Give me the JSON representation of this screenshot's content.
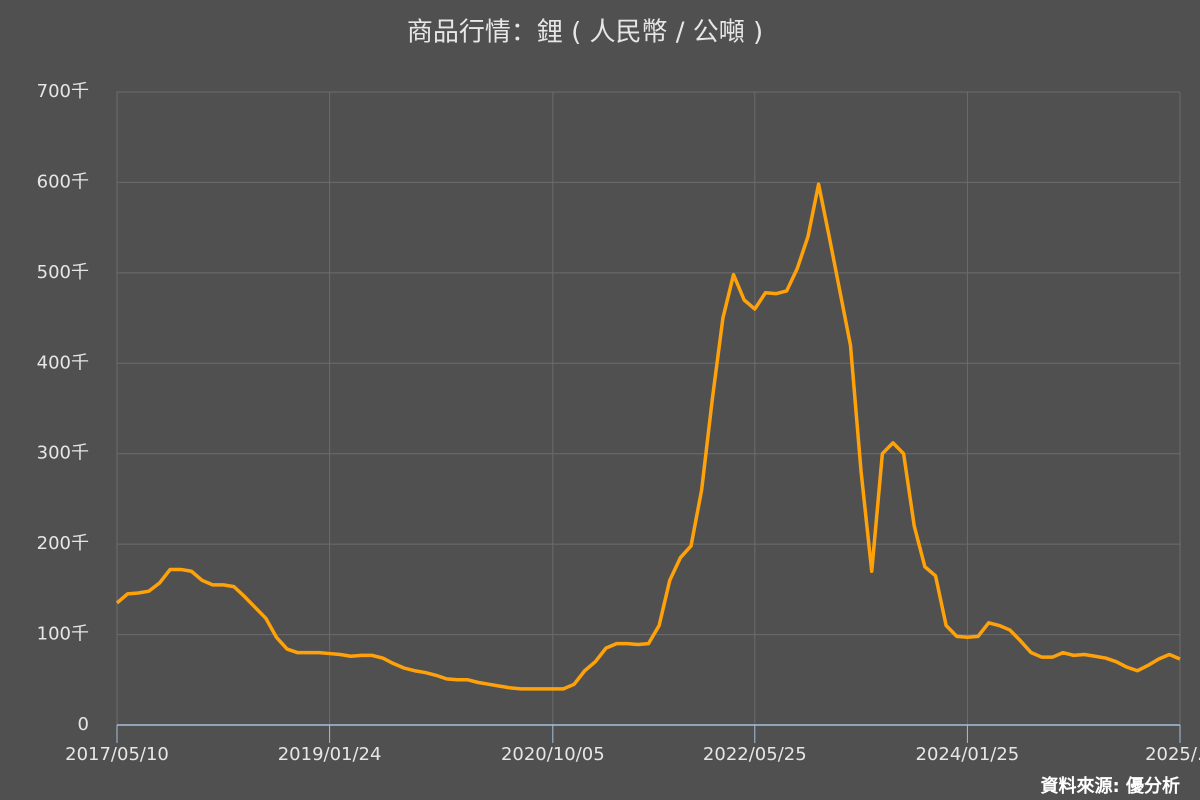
{
  "chart_data": {
    "type": "line",
    "title": "商品行情：鋰 ( 人民幣 / 公噸 )",
    "source": "資料來源: 優分析",
    "categories": [
      "2017/05/10",
      null,
      null,
      null,
      null,
      null,
      null,
      null,
      null,
      null,
      null,
      null,
      null,
      null,
      null,
      null,
      null,
      null,
      null,
      null,
      "2019/01/24",
      null,
      null,
      null,
      null,
      null,
      null,
      null,
      null,
      null,
      null,
      null,
      null,
      null,
      null,
      null,
      null,
      null,
      null,
      null,
      null,
      "2020/10/05",
      null,
      null,
      null,
      null,
      null,
      null,
      null,
      null,
      null,
      null,
      null,
      null,
      null,
      null,
      null,
      null,
      null,
      null,
      "2022/05/25",
      null,
      null,
      null,
      null,
      null,
      null,
      null,
      null,
      null,
      null,
      null,
      null,
      null,
      null,
      null,
      null,
      null,
      null,
      null,
      "2024/01/25",
      null,
      null,
      null,
      null,
      null,
      null,
      null,
      null,
      null,
      null,
      null,
      null,
      null,
      null,
      null,
      null,
      null,
      null,
      null,
      "2025/…"
    ],
    "values": [
      135000,
      145000,
      146000,
      148000,
      157000,
      172000,
      172000,
      170000,
      160000,
      155000,
      155000,
      153000,
      142000,
      130000,
      118000,
      97000,
      84000,
      80000,
      80000,
      80000,
      79000,
      78000,
      76000,
      77000,
      77000,
      74000,
      68000,
      63000,
      60000,
      58000,
      55000,
      51000,
      50000,
      50000,
      47000,
      45000,
      43000,
      41000,
      40000,
      40000,
      40000,
      40000,
      40000,
      45000,
      60000,
      70000,
      85000,
      90000,
      90000,
      89000,
      90000,
      110000,
      160000,
      185000,
      198000,
      260000,
      360000,
      450000,
      498000,
      470000,
      460000,
      478000,
      477000,
      480000,
      505000,
      540000,
      598000,
      540000,
      480000,
      420000,
      280000,
      170000,
      300000,
      312000,
      300000,
      220000,
      175000,
      165000,
      110000,
      98000,
      97000,
      98000,
      113000,
      110000,
      105000,
      93000,
      80000,
      75000,
      75000,
      80000,
      77000,
      78000,
      76000,
      74000,
      70000,
      64000,
      60000,
      66000,
      73000,
      78000,
      73000
    ],
    "color": "#ffa20a",
    "ylim": [
      0,
      700000
    ],
    "yticks": [
      0,
      {
        "value": 100000,
        "label": "100千"
      },
      {
        "value": 200000,
        "label": "200千"
      },
      {
        "value": 300000,
        "label": "300千"
      },
      {
        "value": 400000,
        "label": "400千"
      },
      {
        "value": 500000,
        "label": "500千"
      },
      {
        "value": 600000,
        "label": "600千"
      },
      {
        "value": 700000,
        "label": "700千"
      }
    ],
    "grid": true
  }
}
